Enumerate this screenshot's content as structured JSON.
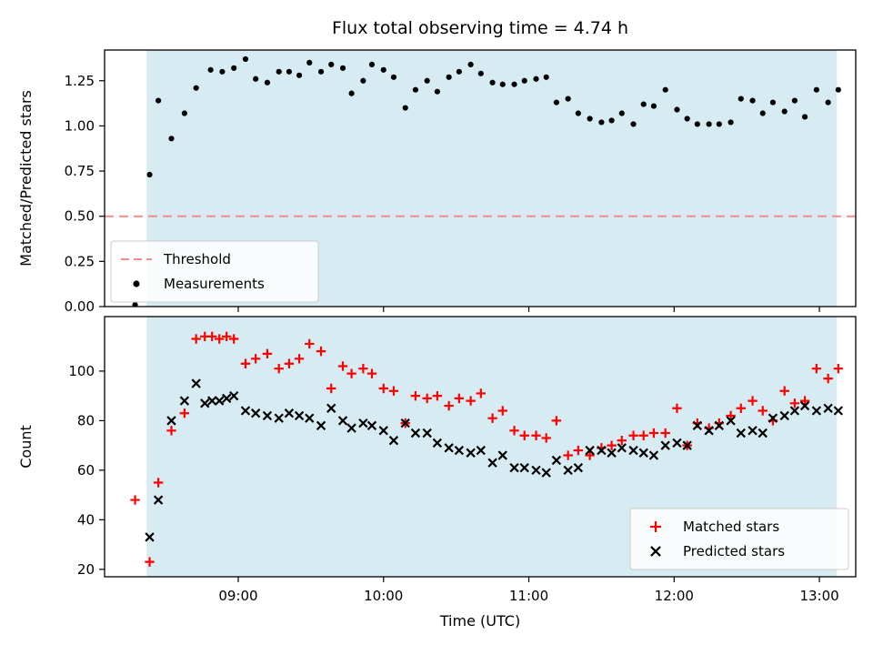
{
  "figure": {
    "background": "#ffffff",
    "title": "Flux total observing time = 4.74 h"
  },
  "chart_data": [
    {
      "type": "scatter",
      "panel": "top",
      "title": "Flux total observing time = 4.74 h",
      "ylabel": "Matched/Predicted stars",
      "xlabel": "",
      "xlim": [
        8.08,
        13.25
      ],
      "ylim": [
        0,
        1.42
      ],
      "xticks": [
        9,
        10,
        11,
        12,
        13
      ],
      "xtick_labels": [
        "09:00",
        "10:00",
        "11:00",
        "12:00",
        "13:00"
      ],
      "show_xtick_labels": false,
      "yticks": [
        0.0,
        0.25,
        0.5,
        0.75,
        1.0,
        1.25
      ],
      "ytick_labels": [
        "0.00",
        "0.25",
        "0.50",
        "0.75",
        "1.00",
        "1.25"
      ],
      "grid": false,
      "shade_span": [
        8.37,
        13.12
      ],
      "shade_color": "rgba(173,216,230,0.5)",
      "threshold": {
        "value": 0.5,
        "color": "#f58a8a",
        "label": "Threshold"
      },
      "series": [
        {
          "name": "Measurements",
          "marker": "dot",
          "color": "#000000",
          "x": [
            8.29,
            8.39,
            8.45,
            8.54,
            8.63,
            8.71,
            8.81,
            8.89,
            8.97,
            9.05,
            9.12,
            9.2,
            9.28,
            9.35,
            9.42,
            9.49,
            9.57,
            9.64,
            9.72,
            9.78,
            9.86,
            9.92,
            10.0,
            10.07,
            10.15,
            10.22,
            10.3,
            10.37,
            10.45,
            10.52,
            10.6,
            10.67,
            10.75,
            10.82,
            10.9,
            10.97,
            11.05,
            11.12,
            11.19,
            11.27,
            11.34,
            11.42,
            11.5,
            11.57,
            11.64,
            11.72,
            11.79,
            11.86,
            11.94,
            12.02,
            12.09,
            12.16,
            12.24,
            12.31,
            12.39,
            12.46,
            12.54,
            12.61,
            12.68,
            12.76,
            12.83,
            12.9,
            12.98,
            13.06,
            13.13
          ],
          "y": [
            0.01,
            0.73,
            1.14,
            0.93,
            1.07,
            1.21,
            1.31,
            1.3,
            1.32,
            1.37,
            1.26,
            1.24,
            1.3,
            1.3,
            1.28,
            1.35,
            1.3,
            1.34,
            1.32,
            1.18,
            1.25,
            1.34,
            1.31,
            1.27,
            1.1,
            1.2,
            1.25,
            1.19,
            1.27,
            1.3,
            1.34,
            1.29,
            1.24,
            1.23,
            1.23,
            1.25,
            1.26,
            1.27,
            1.13,
            1.15,
            1.07,
            1.04,
            1.02,
            1.03,
            1.07,
            1.01,
            1.12,
            1.11,
            1.2,
            1.09,
            1.04,
            1.01,
            1.01,
            1.01,
            1.02,
            1.15,
            1.14,
            1.07,
            1.13,
            1.08,
            1.14,
            1.05,
            1.2,
            1.13,
            1.2
          ]
        }
      ],
      "legend": {
        "position": "lower-left",
        "entries": [
          {
            "marker": "dash",
            "color": "#f58a8a",
            "label": "Threshold"
          },
          {
            "marker": "dot",
            "color": "#000000",
            "label": "Measurements"
          }
        ]
      }
    },
    {
      "type": "scatter",
      "panel": "bottom",
      "title": "",
      "ylabel": "Count",
      "xlabel": "Time (UTC)",
      "xlim": [
        8.08,
        13.25
      ],
      "ylim": [
        17,
        122
      ],
      "xticks": [
        9,
        10,
        11,
        12,
        13
      ],
      "xtick_labels": [
        "09:00",
        "10:00",
        "11:00",
        "12:00",
        "13:00"
      ],
      "show_xtick_labels": true,
      "yticks": [
        20,
        40,
        60,
        80,
        100
      ],
      "ytick_labels": [
        "20",
        "40",
        "60",
        "80",
        "100"
      ],
      "grid": false,
      "shade_span": [
        8.37,
        13.12
      ],
      "shade_color": "rgba(173,216,230,0.5)",
      "threshold": null,
      "series": [
        {
          "name": "Matched stars",
          "marker": "plus",
          "color": "#ff0000",
          "x": [
            8.29,
            8.39,
            8.45,
            8.54,
            8.63,
            8.71,
            8.77,
            8.82,
            8.87,
            8.92,
            8.97,
            9.05,
            9.12,
            9.2,
            9.28,
            9.35,
            9.42,
            9.49,
            9.57,
            9.64,
            9.72,
            9.78,
            9.86,
            9.92,
            10.0,
            10.07,
            10.15,
            10.22,
            10.3,
            10.37,
            10.45,
            10.52,
            10.6,
            10.67,
            10.75,
            10.82,
            10.9,
            10.97,
            11.05,
            11.12,
            11.19,
            11.27,
            11.34,
            11.42,
            11.5,
            11.57,
            11.64,
            11.72,
            11.79,
            11.86,
            11.94,
            12.02,
            12.09,
            12.16,
            12.24,
            12.31,
            12.39,
            12.46,
            12.54,
            12.61,
            12.68,
            12.76,
            12.83,
            12.9,
            12.98,
            13.06,
            13.13
          ],
          "y": [
            48,
            23,
            55,
            76,
            83,
            113,
            114,
            114,
            113,
            114,
            113,
            103,
            105,
            107,
            101,
            103,
            105,
            111,
            108,
            93,
            102,
            99,
            101,
            99,
            93,
            92,
            79,
            90,
            89,
            90,
            86,
            89,
            88,
            91,
            81,
            84,
            76,
            74,
            74,
            73,
            80,
            66,
            68,
            66,
            69,
            70,
            72,
            74,
            74,
            75,
            75,
            85,
            70,
            79,
            77,
            79,
            82,
            85,
            88,
            84,
            80,
            92,
            87,
            88,
            101,
            97,
            101
          ]
        },
        {
          "name": "Predicted stars",
          "marker": "x",
          "color": "#000000",
          "x": [
            8.29,
            8.39,
            8.45,
            8.54,
            8.63,
            8.71,
            8.77,
            8.82,
            8.87,
            8.92,
            8.97,
            9.05,
            9.12,
            9.2,
            9.28,
            9.35,
            9.42,
            9.49,
            9.57,
            9.64,
            9.72,
            9.78,
            9.86,
            9.92,
            10.0,
            10.07,
            10.15,
            10.22,
            10.3,
            10.37,
            10.45,
            10.52,
            10.6,
            10.67,
            10.75,
            10.82,
            10.9,
            10.97,
            11.05,
            11.12,
            11.19,
            11.27,
            11.34,
            11.42,
            11.5,
            11.57,
            11.64,
            11.72,
            11.79,
            11.86,
            11.94,
            12.02,
            12.09,
            12.16,
            12.24,
            12.31,
            12.39,
            12.46,
            12.54,
            12.61,
            12.68,
            12.76,
            12.83,
            12.9,
            12.98,
            13.06,
            13.13
          ],
          "y": [
            null,
            33,
            48,
            80,
            88,
            95,
            87,
            88,
            88,
            89,
            90,
            84,
            83,
            82,
            81,
            83,
            82,
            81,
            78,
            85,
            80,
            77,
            79,
            78,
            76,
            72,
            79,
            75,
            75,
            71,
            69,
            68,
            67,
            68,
            63,
            66,
            61,
            61,
            60,
            59,
            64,
            60,
            61,
            68,
            68,
            67,
            69,
            68,
            67,
            66,
            70,
            71,
            70,
            78,
            76,
            78,
            80,
            75,
            76,
            75,
            81,
            82,
            84,
            86,
            84,
            85,
            84
          ]
        }
      ],
      "legend": {
        "position": "lower-right",
        "entries": [
          {
            "marker": "plus",
            "color": "#ff0000",
            "label": "Matched stars"
          },
          {
            "marker": "x",
            "color": "#000000",
            "label": "Predicted stars"
          }
        ]
      }
    }
  ]
}
